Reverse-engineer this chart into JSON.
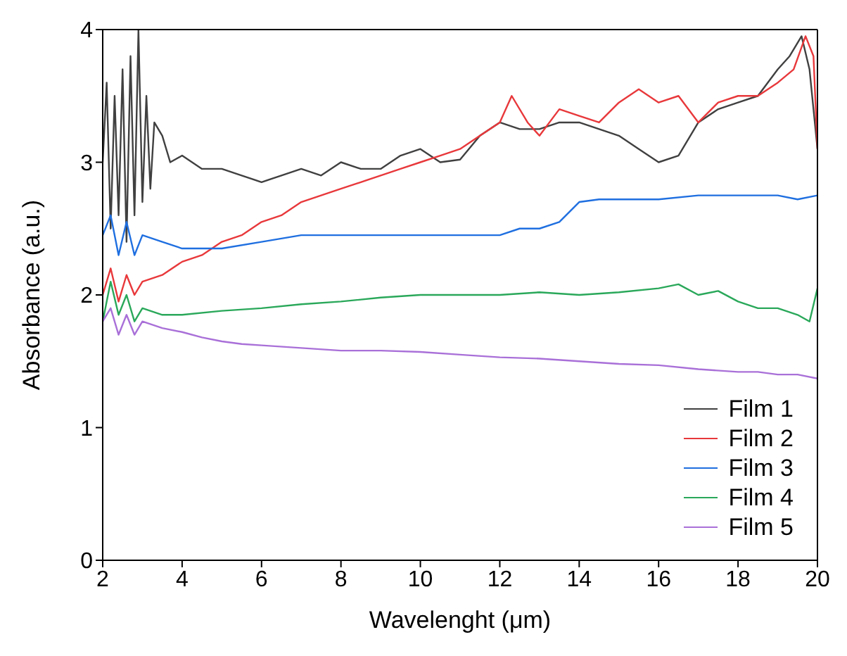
{
  "chart_data": {
    "type": "line",
    "xlabel": "Wavelenght (μm)",
    "ylabel": "Absorbance (a.u.)",
    "xlim": [
      2,
      20
    ],
    "xticks": [
      2,
      4,
      6,
      8,
      10,
      12,
      14,
      16,
      18,
      20
    ],
    "ylim": [
      0,
      4
    ],
    "yticks": [
      0,
      1,
      2,
      3,
      4
    ],
    "grid": false,
    "legend": "bottom right",
    "marker": "none",
    "line_style": "solid",
    "series": [
      {
        "name": "Film 1",
        "color": "#404040",
        "x": [
          2,
          2.1,
          2.2,
          2.3,
          2.4,
          2.5,
          2.6,
          2.7,
          2.8,
          2.9,
          3,
          3.1,
          3.2,
          3.3,
          3.5,
          3.7,
          4,
          4.5,
          5,
          5.5,
          6,
          6.5,
          7,
          7.5,
          8,
          8.5,
          9,
          9.5,
          10,
          10.5,
          11,
          11.5,
          12,
          12.5,
          13,
          13.5,
          14,
          14.5,
          15,
          15.5,
          16,
          16.5,
          17,
          17.5,
          18,
          18.5,
          19,
          19.3,
          19.6,
          19.8,
          20
        ],
        "values": [
          3.0,
          3.6,
          2.5,
          3.5,
          2.6,
          3.7,
          2.4,
          3.8,
          2.6,
          4.0,
          2.7,
          3.5,
          2.8,
          3.3,
          3.2,
          3.0,
          3.05,
          2.95,
          2.95,
          2.9,
          2.85,
          2.9,
          2.95,
          2.9,
          3.0,
          2.95,
          2.95,
          3.05,
          3.1,
          3.0,
          3.02,
          3.2,
          3.3,
          3.25,
          3.25,
          3.3,
          3.3,
          3.25,
          3.2,
          3.1,
          3.0,
          3.05,
          3.3,
          3.4,
          3.45,
          3.5,
          3.7,
          3.8,
          3.95,
          3.7,
          3.1
        ]
      },
      {
        "name": "Film 2",
        "color": "#e8383b",
        "x": [
          2,
          2.2,
          2.4,
          2.6,
          2.8,
          3,
          3.5,
          4,
          4.5,
          5,
          5.5,
          6,
          6.5,
          7,
          7.5,
          8,
          8.5,
          9,
          9.5,
          10,
          10.5,
          11,
          11.5,
          12,
          12.3,
          12.7,
          13,
          13.5,
          14,
          14.5,
          15,
          15.5,
          16,
          16.5,
          17,
          17.5,
          18,
          18.5,
          19,
          19.4,
          19.7,
          19.9,
          20
        ],
        "values": [
          2.0,
          2.2,
          1.95,
          2.15,
          2.0,
          2.1,
          2.15,
          2.25,
          2.3,
          2.4,
          2.45,
          2.55,
          2.6,
          2.7,
          2.75,
          2.8,
          2.85,
          2.9,
          2.95,
          3.0,
          3.05,
          3.1,
          3.2,
          3.3,
          3.5,
          3.3,
          3.2,
          3.4,
          3.35,
          3.3,
          3.45,
          3.55,
          3.45,
          3.5,
          3.3,
          3.45,
          3.5,
          3.5,
          3.6,
          3.7,
          3.95,
          3.8,
          3.1
        ]
      },
      {
        "name": "Film 3",
        "color": "#1f6fe0",
        "x": [
          2,
          2.2,
          2.4,
          2.6,
          2.8,
          3,
          3.5,
          4,
          5,
          6,
          7,
          8,
          9,
          10,
          11,
          12,
          12.5,
          13,
          13.5,
          14,
          14.5,
          15,
          16,
          17,
          18,
          19,
          19.5,
          20
        ],
        "values": [
          2.45,
          2.6,
          2.3,
          2.55,
          2.3,
          2.45,
          2.4,
          2.35,
          2.35,
          2.4,
          2.45,
          2.45,
          2.45,
          2.45,
          2.45,
          2.45,
          2.5,
          2.5,
          2.55,
          2.7,
          2.72,
          2.72,
          2.72,
          2.75,
          2.75,
          2.75,
          2.72,
          2.75
        ]
      },
      {
        "name": "Film 4",
        "color": "#2aa85a",
        "x": [
          2,
          2.2,
          2.4,
          2.6,
          2.8,
          3,
          3.5,
          4,
          5,
          6,
          7,
          8,
          9,
          10,
          11,
          12,
          13,
          14,
          15,
          16,
          16.5,
          17,
          17.5,
          18,
          18.5,
          19,
          19.5,
          19.8,
          20
        ],
        "values": [
          1.8,
          2.1,
          1.85,
          2.0,
          1.8,
          1.9,
          1.85,
          1.85,
          1.88,
          1.9,
          1.93,
          1.95,
          1.98,
          2.0,
          2.0,
          2.0,
          2.02,
          2.0,
          2.02,
          2.05,
          2.08,
          2.0,
          2.03,
          1.95,
          1.9,
          1.9,
          1.85,
          1.8,
          2.05
        ]
      },
      {
        "name": "Film 5",
        "color": "#a970d8",
        "x": [
          2,
          2.2,
          2.4,
          2.6,
          2.8,
          3,
          3.5,
          4,
          4.5,
          5,
          5.5,
          6,
          7,
          8,
          9,
          10,
          11,
          12,
          13,
          14,
          15,
          16,
          17,
          18,
          18.5,
          19,
          19.5,
          20
        ],
        "values": [
          1.8,
          1.9,
          1.7,
          1.85,
          1.7,
          1.8,
          1.75,
          1.72,
          1.68,
          1.65,
          1.63,
          1.62,
          1.6,
          1.58,
          1.58,
          1.57,
          1.55,
          1.53,
          1.52,
          1.5,
          1.48,
          1.47,
          1.44,
          1.42,
          1.42,
          1.4,
          1.4,
          1.37
        ]
      }
    ]
  }
}
